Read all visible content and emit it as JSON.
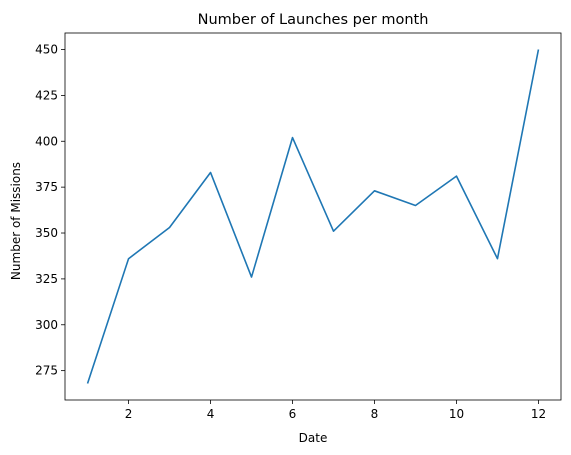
{
  "chart_data": {
    "type": "line",
    "title": "Number of Launches per month",
    "xlabel": "Date",
    "ylabel": "Number of Missions",
    "x": [
      1,
      2,
      3,
      4,
      5,
      6,
      7,
      8,
      9,
      10,
      11,
      12
    ],
    "series": [
      {
        "values": [
          268,
          336,
          353,
          383,
          326,
          402,
          351,
          373,
          365,
          381,
          336,
          450
        ],
        "color": "#1f77b4"
      }
    ],
    "xlim": [
      0.45,
      12.55
    ],
    "ylim": [
      259,
      459
    ],
    "xticks": [
      2,
      4,
      6,
      8,
      10,
      12
    ],
    "yticks": [
      275,
      300,
      325,
      350,
      375,
      400,
      425,
      450
    ],
    "grid": false,
    "legend": "none"
  }
}
